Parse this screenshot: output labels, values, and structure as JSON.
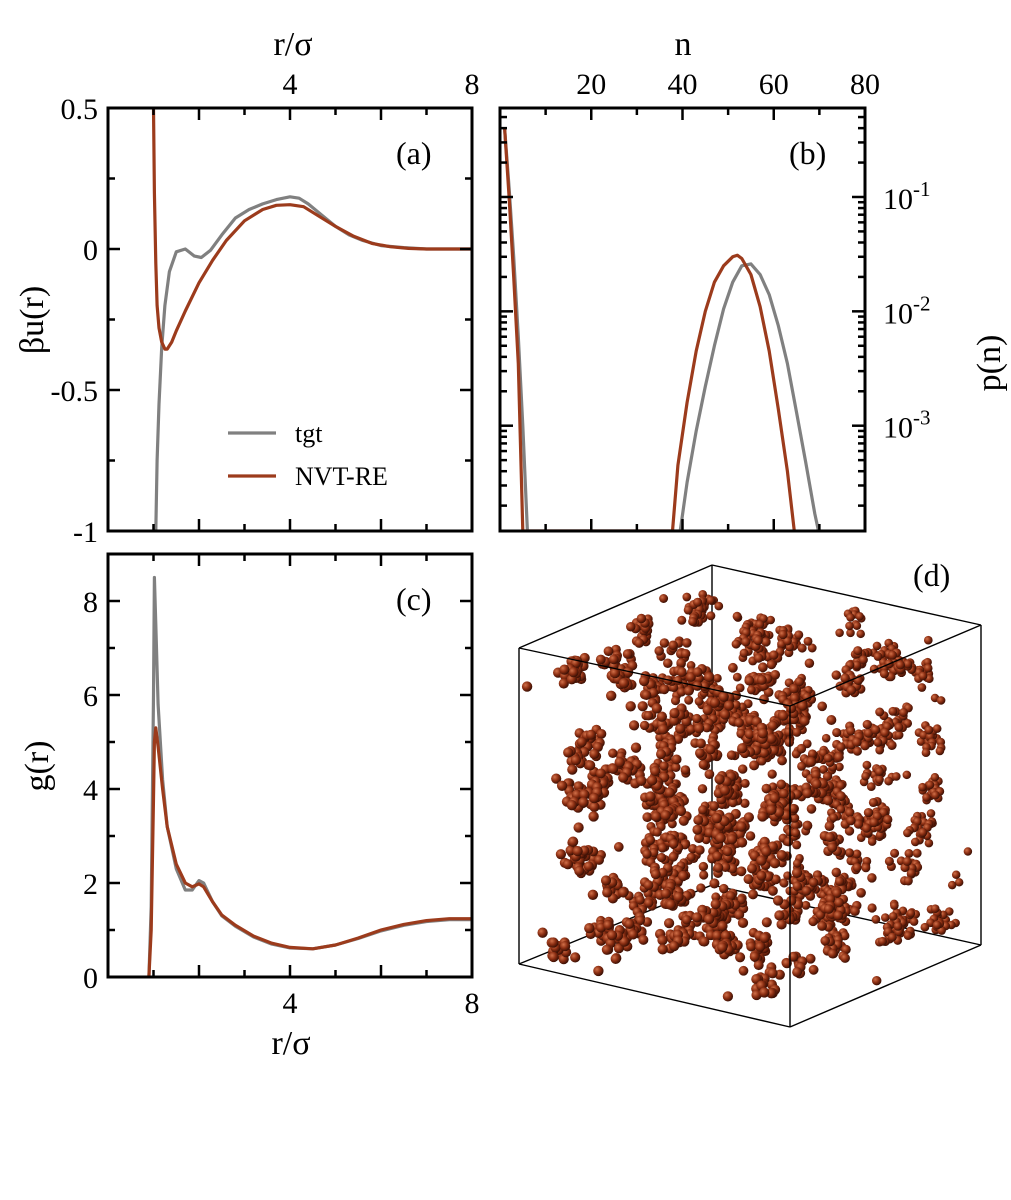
{
  "colors": {
    "tgt": "#808080",
    "re": "#9c3b1c",
    "particle": "#8b2e12",
    "frame": "#000000"
  },
  "chart_data": [
    {
      "id": "a",
      "type": "line",
      "label": "(a)",
      "xlabel": "r/σ",
      "ylabel": "βu(r)",
      "xlim": [
        0,
        8
      ],
      "ylim": [
        -1,
        0.5
      ],
      "xticks": [
        {
          "v": 4,
          "t": "4"
        },
        {
          "v": 8,
          "t": "8"
        }
      ],
      "yticks": [
        {
          "v": 0.5,
          "t": "0.5"
        },
        {
          "v": 0,
          "t": "0"
        },
        {
          "v": -0.5,
          "t": "-0.5"
        },
        {
          "v": -1,
          "t": "-1"
        }
      ],
      "legend": [
        "tgt",
        "NVT-RE"
      ],
      "series": [
        {
          "name": "tgt",
          "color_key": "tgt",
          "x": [
            1.05,
            1.08,
            1.12,
            1.18,
            1.25,
            1.35,
            1.5,
            1.7,
            1.9,
            2.05,
            2.25,
            2.5,
            2.8,
            3.1,
            3.4,
            3.7,
            4.0,
            4.2,
            4.4,
            4.7,
            5.0,
            5.3,
            5.6,
            6.0,
            6.5,
            7.0,
            7.5,
            8.0
          ],
          "y": [
            -1.0,
            -0.75,
            -0.55,
            -0.35,
            -0.2,
            -0.08,
            -0.01,
            0.0,
            -0.025,
            -0.03,
            -0.005,
            0.05,
            0.11,
            0.14,
            0.16,
            0.175,
            0.185,
            0.18,
            0.16,
            0.12,
            0.08,
            0.05,
            0.03,
            0.012,
            0.005,
            0.0,
            0.0,
            0.0
          ]
        },
        {
          "name": "NVT-RE",
          "color_key": "re",
          "x": [
            1.0,
            1.02,
            1.05,
            1.08,
            1.12,
            1.18,
            1.25,
            1.3,
            1.4,
            1.5,
            1.7,
            2.0,
            2.3,
            2.6,
            3.0,
            3.4,
            3.7,
            4.0,
            4.3,
            4.6,
            5.0,
            5.4,
            5.8,
            6.2,
            6.6,
            7.0,
            7.5,
            8.0
          ],
          "y": [
            0.5,
            0.2,
            -0.05,
            -0.2,
            -0.28,
            -0.33,
            -0.355,
            -0.355,
            -0.33,
            -0.29,
            -0.22,
            -0.12,
            -0.04,
            0.03,
            0.1,
            0.14,
            0.155,
            0.157,
            0.15,
            0.12,
            0.08,
            0.045,
            0.02,
            0.008,
            0.002,
            0.0,
            0.0,
            0.0
          ]
        }
      ]
    },
    {
      "id": "b",
      "type": "line",
      "label": "(b)",
      "xlabel": "n",
      "ylabel": "p(n)",
      "xlim": [
        0,
        80
      ],
      "ylog": true,
      "ylim": [
        0.00012,
        0.6
      ],
      "xticks": [
        {
          "v": 20,
          "t": "20"
        },
        {
          "v": 40,
          "t": "40"
        },
        {
          "v": 60,
          "t": "60"
        },
        {
          "v": 80,
          "t": "80"
        }
      ],
      "ydecades": [
        {
          "v": 0.1,
          "base": "10",
          "exp": "-1"
        },
        {
          "v": 0.01,
          "base": "10",
          "exp": "-2"
        },
        {
          "v": 0.001,
          "base": "10",
          "exp": "-3"
        }
      ],
      "series": [
        {
          "name": "tgt",
          "color_key": "tgt",
          "x": [
            1,
            2,
            3,
            4,
            5,
            6,
            39.5,
            41,
            43,
            45,
            47,
            49,
            51,
            53,
            55,
            57,
            59,
            61,
            63,
            65,
            67,
            69,
            69.8
          ],
          "y": [
            0.4,
            0.12,
            0.03,
            0.006,
            0.001,
            0.00012,
            0.00012,
            0.00032,
            0.0009,
            0.0022,
            0.005,
            0.0105,
            0.018,
            0.025,
            0.026,
            0.021,
            0.014,
            0.0075,
            0.0035,
            0.0013,
            0.00048,
            0.00017,
            0.00012
          ]
        },
        {
          "name": "NVT-RE",
          "color_key": "re",
          "x": [
            1,
            2,
            3,
            4,
            5,
            37.8,
            39,
            41,
            43,
            45,
            47,
            49,
            51,
            52,
            53,
            55,
            57,
            59,
            61,
            63,
            64.5
          ],
          "y": [
            0.4,
            0.1,
            0.02,
            0.0035,
            0.00012,
            0.00012,
            0.00045,
            0.0016,
            0.0045,
            0.01,
            0.018,
            0.025,
            0.03,
            0.031,
            0.029,
            0.021,
            0.011,
            0.0045,
            0.0014,
            0.0004,
            0.00012
          ]
        }
      ]
    },
    {
      "id": "c",
      "type": "line",
      "label": "(c)",
      "xlabel": "r/σ",
      "ylabel": "g(r)",
      "xlim": [
        0,
        8
      ],
      "ylim": [
        0,
        9
      ],
      "xticks": [
        {
          "v": 4,
          "t": "4"
        },
        {
          "v": 8,
          "t": "8"
        }
      ],
      "yticks": [
        {
          "v": 0,
          "t": "0"
        },
        {
          "v": 2,
          "t": "2"
        },
        {
          "v": 4,
          "t": "4"
        },
        {
          "v": 6,
          "t": "6"
        },
        {
          "v": 8,
          "t": "8"
        }
      ],
      "series": [
        {
          "name": "tgt",
          "color_key": "tgt",
          "x": [
            0.9,
            0.95,
            1.0,
            1.02,
            1.05,
            1.1,
            1.2,
            1.3,
            1.5,
            1.7,
            1.85,
            2.0,
            2.1,
            2.3,
            2.5,
            2.8,
            3.2,
            3.6,
            4.0,
            4.5,
            5.0,
            5.5,
            6.0,
            6.5,
            7.0,
            7.5,
            8.0
          ],
          "y": [
            0.0,
            1.5,
            6.0,
            8.5,
            7.5,
            5.8,
            4.2,
            3.2,
            2.3,
            1.85,
            1.85,
            2.05,
            2.0,
            1.6,
            1.3,
            1.08,
            0.85,
            0.7,
            0.62,
            0.6,
            0.68,
            0.82,
            0.98,
            1.1,
            1.18,
            1.22,
            1.22
          ]
        },
        {
          "name": "NVT-RE",
          "color_key": "re",
          "x": [
            0.9,
            0.95,
            1.0,
            1.02,
            1.05,
            1.1,
            1.2,
            1.3,
            1.5,
            1.7,
            1.85,
            2.0,
            2.1,
            2.3,
            2.5,
            2.8,
            3.2,
            3.6,
            4.0,
            4.5,
            5.0,
            5.5,
            6.0,
            6.5,
            7.0,
            7.5,
            8.0
          ],
          "y": [
            0.0,
            1.0,
            3.8,
            5.0,
            5.3,
            4.9,
            4.0,
            3.2,
            2.4,
            2.0,
            1.92,
            1.98,
            1.92,
            1.6,
            1.32,
            1.1,
            0.87,
            0.72,
            0.63,
            0.6,
            0.68,
            0.83,
            1.0,
            1.12,
            1.2,
            1.24,
            1.24
          ]
        }
      ]
    }
  ],
  "panel_d": {
    "label": "(d)"
  }
}
